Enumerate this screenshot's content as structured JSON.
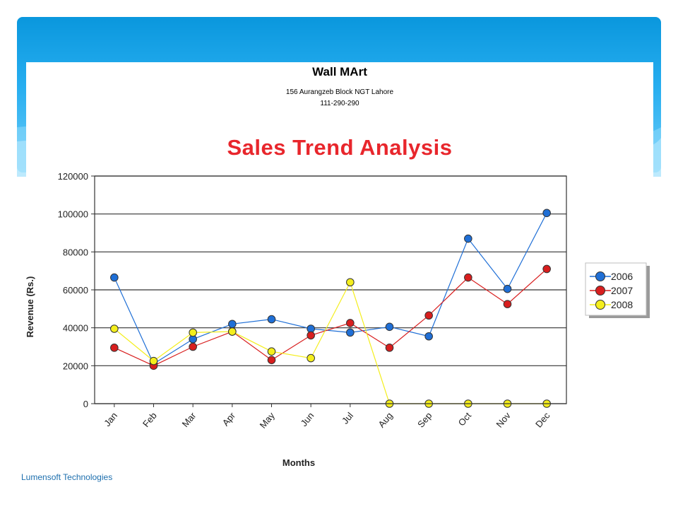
{
  "slide": {
    "footer": "Lumensoft Technologies"
  },
  "report": {
    "company": "Wall MArt",
    "address": "156 Aurangzeb Block NGT Lahore",
    "phone": "111-290-290"
  },
  "colors": {
    "banner": "#0a97dd",
    "title": "#e8262c",
    "series_2006": "#1f6fd6",
    "series_2007": "#d81e1e",
    "series_2008": "#f4ee1c"
  },
  "chart_data": {
    "type": "line",
    "title": "Sales Trend Analysis",
    "xlabel": "Months",
    "ylabel": "Revenue (Rs.)",
    "ylim": [
      0,
      120000
    ],
    "yticks": [
      0,
      20000,
      40000,
      60000,
      80000,
      100000,
      120000
    ],
    "grid": true,
    "legend_position": "right",
    "categories": [
      "Jan",
      "Feb",
      "Mar",
      "Apr",
      "May",
      "Jun",
      "Jul",
      "Aug",
      "Sep",
      "Oct",
      "Nov",
      "Dec"
    ],
    "series": [
      {
        "name": "2006",
        "color": "#1f6fd6",
        "values": [
          66500,
          21000,
          34000,
          42000,
          44500,
          39500,
          37500,
          40500,
          35500,
          87000,
          60500,
          100500
        ]
      },
      {
        "name": "2007",
        "color": "#d81e1e",
        "values": [
          29500,
          20000,
          30000,
          38000,
          23000,
          36000,
          42500,
          29500,
          46500,
          66500,
          52500,
          71000
        ]
      },
      {
        "name": "2008",
        "color": "#f4ee1c",
        "values": [
          39500,
          22500,
          37500,
          38000,
          27500,
          24000,
          64000,
          0,
          0,
          0,
          0,
          0
        ]
      }
    ]
  }
}
